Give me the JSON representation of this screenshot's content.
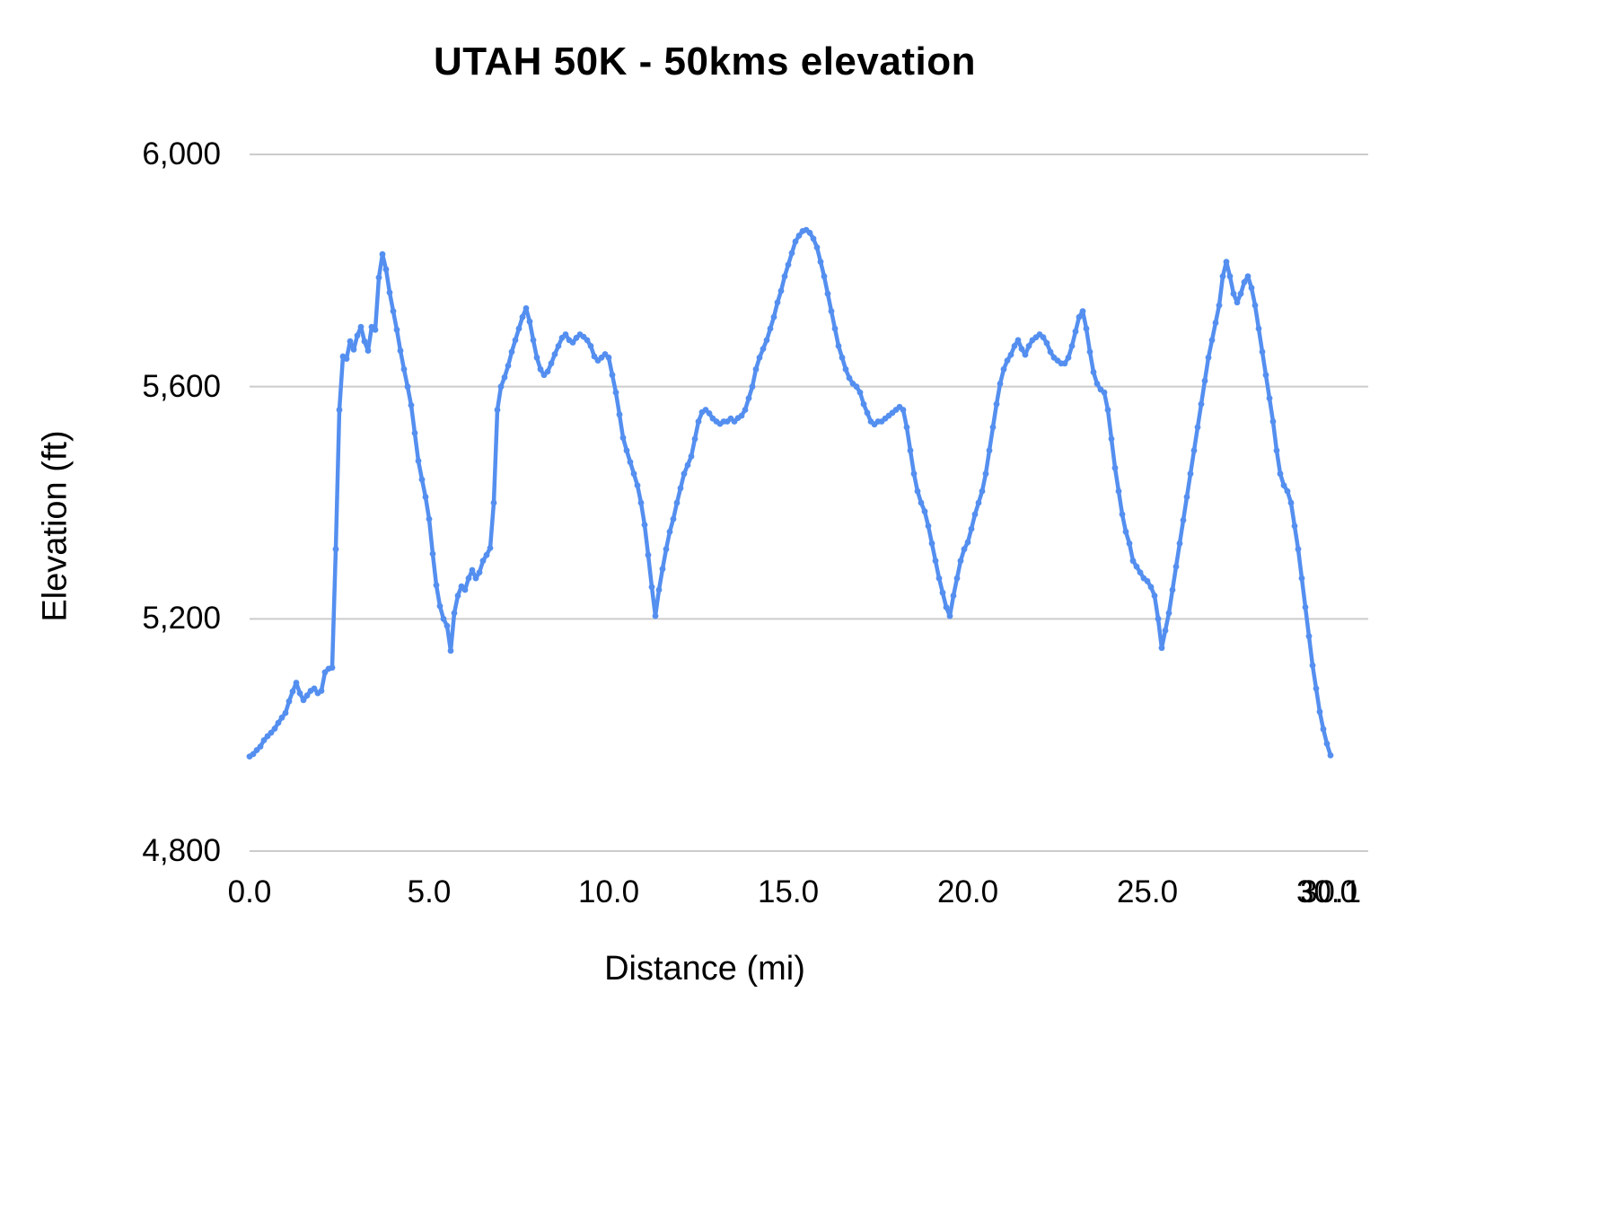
{
  "chart_data": {
    "type": "line",
    "title": "UTAH 50K - 50kms elevation",
    "xlabel": "Distance (mi)",
    "ylabel": "Elevation (ft)",
    "legend": "none",
    "grid": true,
    "line_color": "#548ff0",
    "grid_color": "#cccccc",
    "xlim": [
      0,
      31.15
    ],
    "ylim": [
      4800,
      6000
    ],
    "y_ticks": [
      4800,
      5200,
      5600,
      6000
    ],
    "y_tick_labels": [
      "4,800",
      "5,200",
      "5,600",
      "6,000"
    ],
    "x_ticks": [
      0,
      5,
      10,
      15,
      20,
      25,
      30,
      30.1
    ],
    "x_tick_labels": [
      "0.0",
      "5.0",
      "10.0",
      "15.0",
      "20.0",
      "25.0",
      "30.0",
      "30.1"
    ],
    "x_start": 0.0,
    "x_step": 0.1,
    "x_end": 30.1,
    "values": [
      4963,
      4967,
      4974,
      4980,
      4991,
      4998,
      5004,
      5011,
      5021,
      5030,
      5038,
      5058,
      5075,
      5090,
      5072,
      5060,
      5068,
      5076,
      5080,
      5072,
      5076,
      5108,
      5114,
      5116,
      5320,
      5560,
      5652,
      5648,
      5678,
      5664,
      5688,
      5703,
      5678,
      5662,
      5703,
      5698,
      5788,
      5828,
      5802,
      5762,
      5730,
      5698,
      5662,
      5630,
      5600,
      5568,
      5520,
      5472,
      5440,
      5410,
      5372,
      5312,
      5258,
      5222,
      5200,
      5188,
      5145,
      5210,
      5240,
      5256,
      5250,
      5270,
      5284,
      5270,
      5280,
      5300,
      5310,
      5322,
      5400,
      5560,
      5600,
      5616,
      5636,
      5660,
      5680,
      5700,
      5720,
      5735,
      5712,
      5680,
      5650,
      5630,
      5620,
      5626,
      5640,
      5656,
      5670,
      5684,
      5690,
      5680,
      5676,
      5684,
      5690,
      5686,
      5680,
      5670,
      5652,
      5645,
      5650,
      5656,
      5650,
      5620,
      5590,
      5552,
      5512,
      5490,
      5470,
      5450,
      5430,
      5400,
      5362,
      5310,
      5255,
      5205,
      5250,
      5286,
      5320,
      5350,
      5372,
      5400,
      5425,
      5450,
      5465,
      5480,
      5510,
      5540,
      5556,
      5560,
      5554,
      5545,
      5540,
      5536,
      5540,
      5540,
      5545,
      5540,
      5546,
      5550,
      5560,
      5580,
      5600,
      5630,
      5650,
      5665,
      5680,
      5700,
      5720,
      5745,
      5765,
      5790,
      5810,
      5830,
      5850,
      5860,
      5868,
      5870,
      5865,
      5855,
      5840,
      5815,
      5790,
      5760,
      5730,
      5700,
      5670,
      5650,
      5630,
      5615,
      5605,
      5600,
      5590,
      5570,
      5555,
      5540,
      5535,
      5540,
      5540,
      5545,
      5550,
      5555,
      5560,
      5565,
      5560,
      5530,
      5490,
      5450,
      5420,
      5400,
      5385,
      5360,
      5330,
      5300,
      5270,
      5245,
      5220,
      5205,
      5240,
      5270,
      5300,
      5320,
      5332,
      5355,
      5380,
      5400,
      5420,
      5450,
      5490,
      5530,
      5570,
      5605,
      5630,
      5645,
      5655,
      5670,
      5680,
      5665,
      5655,
      5670,
      5680,
      5685,
      5690,
      5685,
      5675,
      5660,
      5650,
      5645,
      5640,
      5640,
      5650,
      5670,
      5695,
      5720,
      5730,
      5700,
      5660,
      5625,
      5605,
      5595,
      5590,
      5560,
      5510,
      5460,
      5420,
      5380,
      5350,
      5330,
      5300,
      5290,
      5280,
      5270,
      5265,
      5255,
      5240,
      5200,
      5150,
      5180,
      5210,
      5250,
      5290,
      5330,
      5370,
      5410,
      5450,
      5490,
      5530,
      5570,
      5610,
      5650,
      5680,
      5710,
      5740,
      5790,
      5815,
      5790,
      5760,
      5745,
      5760,
      5780,
      5790,
      5770,
      5740,
      5700,
      5660,
      5620,
      5580,
      5540,
      5490,
      5450,
      5430,
      5420,
      5400,
      5360,
      5320,
      5270,
      5220,
      5170,
      5120,
      5080,
      5040,
      5010,
      4985,
      4965
    ]
  }
}
